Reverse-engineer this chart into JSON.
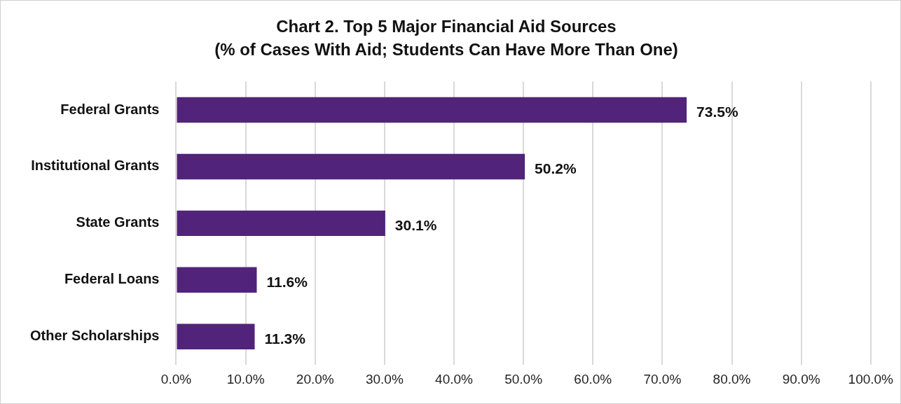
{
  "chart_data": {
    "type": "bar",
    "orientation": "horizontal",
    "title": "Chart 2. Top 5 Major Financial Aid Sources",
    "subtitle": "(% of Cases With Aid; Students Can Have More Than One)",
    "categories": [
      "Federal Grants",
      "Institutional Grants",
      "State Grants",
      "Federal Loans",
      "Other Scholarships"
    ],
    "values": [
      73.5,
      50.2,
      30.1,
      11.6,
      11.3
    ],
    "value_labels": [
      "73.5%",
      "50.2%",
      "30.1%",
      "11.6%",
      "11.3%"
    ],
    "color": "#51237a",
    "xlim": [
      0,
      100
    ],
    "xticks": [
      {
        "value": 0,
        "label": "0.0%"
      },
      {
        "value": 10,
        "label": "10.0%"
      },
      {
        "value": 20,
        "label": "20.0%"
      },
      {
        "value": 30,
        "label": "30.0%"
      },
      {
        "value": 40,
        "label": "40.0%"
      },
      {
        "value": 50,
        "label": "50.0%"
      },
      {
        "value": 60,
        "label": "60.0%"
      },
      {
        "value": 70,
        "label": "70.0%"
      },
      {
        "value": 80,
        "label": "80.0%"
      },
      {
        "value": 90,
        "label": "90.0%"
      },
      {
        "value": 100,
        "label": "100.0%"
      }
    ],
    "grid": "x",
    "legend": false
  }
}
